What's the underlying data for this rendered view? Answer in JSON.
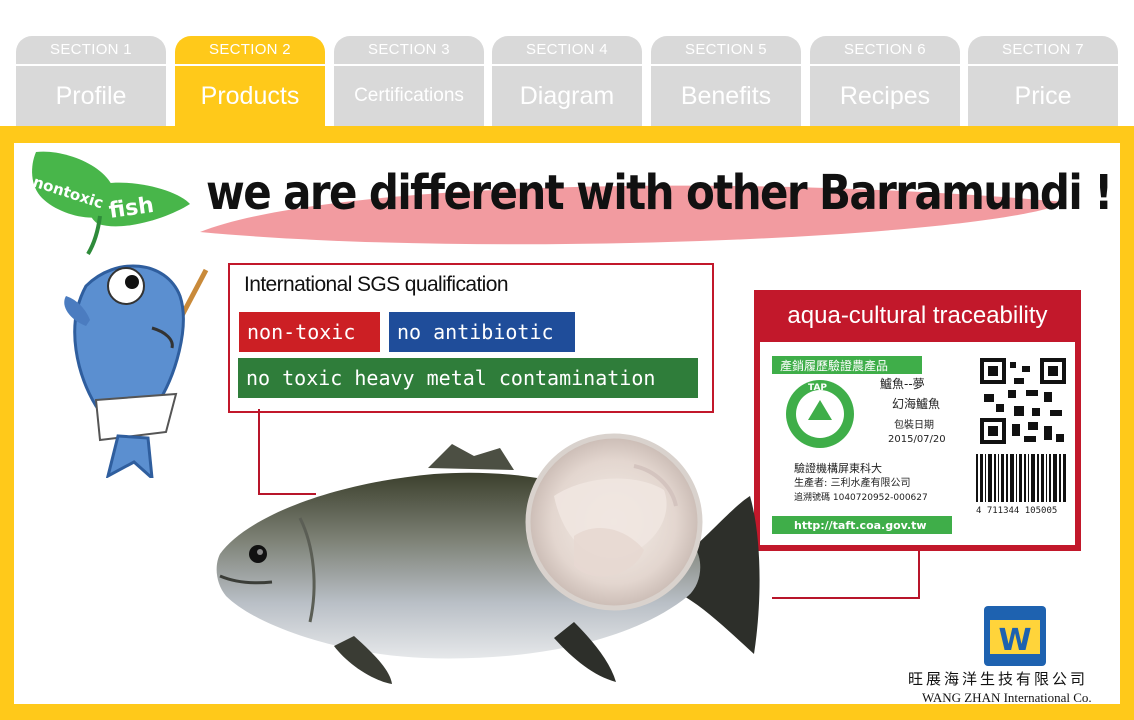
{
  "tabs": [
    {
      "num": "SECTION 1",
      "label": "Profile"
    },
    {
      "num": "SECTION 2",
      "label": "Products"
    },
    {
      "num": "SECTION 3",
      "label": "Certifications"
    },
    {
      "num": "SECTION 4",
      "label": "Diagram"
    },
    {
      "num": "SECTION 5",
      "label": "Benefits"
    },
    {
      "num": "SECTION 6",
      "label": "Recipes"
    },
    {
      "num": "SECTION 7",
      "label": "Price"
    }
  ],
  "active_tab": 1,
  "colors": {
    "accent_yellow": "#ffc91a",
    "tab_gray": "#d9d9d9",
    "red": "#cc1f24",
    "blue": "#1f4d9a",
    "green": "#2f7d3a",
    "ellipse_pink": "#f08a8f"
  },
  "badge": {
    "word1": "nontoxic",
    "word2": "fish"
  },
  "headline": "we are different with other Barramundi !",
  "sgs": {
    "title": "International SGS qualification",
    "tags": [
      "non-toxic",
      "no antibiotic",
      "no toxic heavy metal contamination"
    ]
  },
  "traceability": {
    "title": "aqua-cultural traceability",
    "label_heading": "產銷履歷驗證農產品",
    "product": "鱸魚--夢",
    "product2": "幻海鱸魚",
    "pack_date_label": "包裝日期",
    "pack_date": "2015/07/20",
    "cert_body": "驗證機構屏東科大",
    "producer": "生產者: 三利水產有限公司",
    "trace_no": "追溯號碼 1040720952-000627",
    "url": "http://taft.coa.gov.tw",
    "tap": "TAP",
    "barcode_num": "4 711344 105005"
  },
  "company": {
    "logo_letter": "W",
    "name_cn": "旺展海洋生技有限公司",
    "name_en": "WANG ZHAN International Co."
  }
}
